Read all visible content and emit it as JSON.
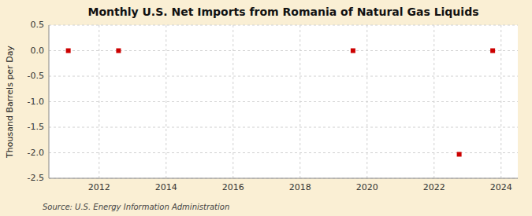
{
  "chart_data": {
    "type": "scatter",
    "title": "Monthly U.S. Net Imports from Romania of Natural Gas Liquids",
    "ylabel": "Thousand Barrels per Day",
    "annotations": [
      "Source: U.S. Energy Information Administration"
    ],
    "x": [
      2011.08,
      2012.58,
      2019.58,
      2022.75,
      2023.75
    ],
    "values": [
      0.0,
      0.0,
      0.0,
      -2.03,
      0.0
    ],
    "color": "#cc0000",
    "marker": "square",
    "xlim": [
      2010.5,
      2024.5
    ],
    "ylim": [
      -2.5,
      0.5
    ],
    "xticks": [
      2012,
      2014,
      2016,
      2018,
      2020,
      2022,
      2024
    ],
    "yticks": [
      0.5,
      {
        "value": 0,
        "label": "0.0"
      },
      -0.5,
      {
        "value": -1,
        "label": "-1.0"
      },
      -1.5,
      {
        "value": -2,
        "label": "-2.0"
      },
      -2.5
    ],
    "grid": true
  }
}
